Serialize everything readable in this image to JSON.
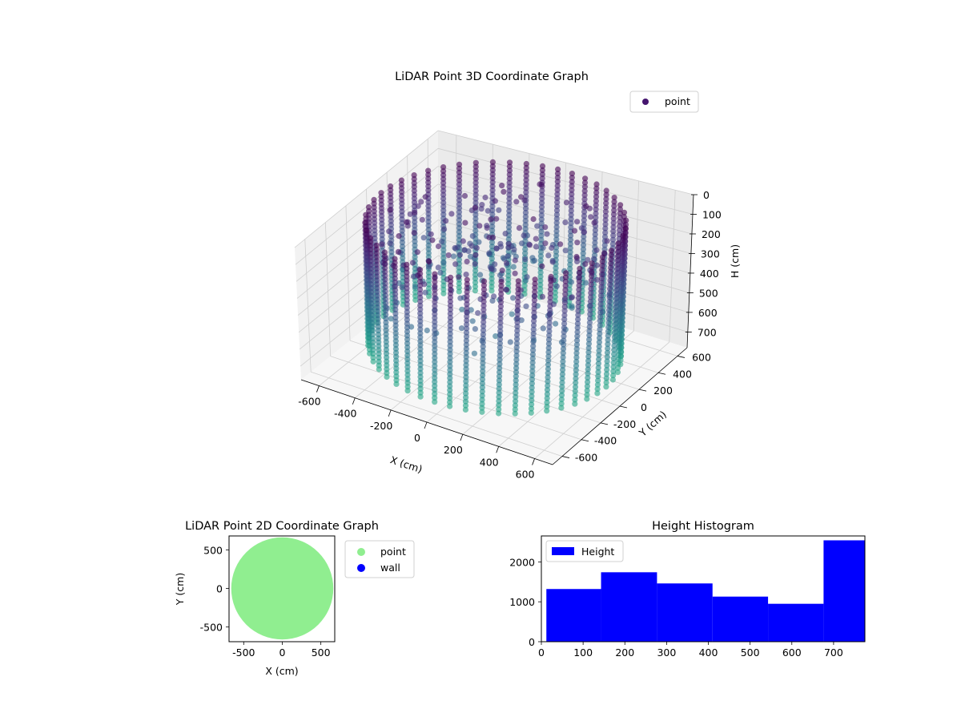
{
  "chart_data": [
    {
      "type": "scatter",
      "projection": "3d",
      "title": "LiDAR Point 3D Coordinate Graph",
      "xlabel": "X (cm)",
      "ylabel": "Y (cm)",
      "zlabel": "H (cm)",
      "xlim": [
        -700,
        700
      ],
      "ylim": [
        -700,
        700
      ],
      "zlim": [
        0,
        780
      ],
      "z_axis_inverted": true,
      "xticks": [
        "-600",
        "-400",
        "-200",
        "0",
        "200",
        "400",
        "600"
      ],
      "yticks": [
        "-600",
        "-400",
        "-200",
        "0",
        "200",
        "400",
        "600"
      ],
      "zticks": [
        "0",
        "100",
        "200",
        "300",
        "400",
        "500",
        "600",
        "700"
      ],
      "colormap": "viridis",
      "grid": true,
      "legend": {
        "placement": "top-right",
        "entries": [
          "point"
        ]
      },
      "series": [
        {
          "name": "point",
          "color": "#3b1c6c",
          "description_values": {
            "wall_radius": 620,
            "height_range": [
              0,
              780
            ],
            "scan_columns": 48
          }
        }
      ]
    },
    {
      "type": "scatter",
      "title": "LiDAR Point 2D Coordinate Graph",
      "xlabel": "X (cm)",
      "ylabel": "Y (cm)",
      "xlim": [
        -690,
        680
      ],
      "ylim": [
        -690,
        680
      ],
      "xticks": [
        "-500",
        "0",
        "500"
      ],
      "yticks": [
        "-500",
        "0",
        "500"
      ],
      "legend": {
        "placement": "outside-right",
        "entries": [
          "point",
          "wall"
        ]
      },
      "series": [
        {
          "name": "point",
          "color": "#90ee90",
          "shape": "disc",
          "radius": 620
        },
        {
          "name": "wall",
          "color": "#0000ff"
        }
      ]
    },
    {
      "type": "bar",
      "subtype": "histogram",
      "title": "Height Histogram",
      "xlim": [
        0,
        775
      ],
      "ylim": [
        0,
        2650
      ],
      "xticks": [
        "0",
        "100",
        "200",
        "300",
        "400",
        "500",
        "600",
        "700"
      ],
      "yticks": [
        "0",
        "1000",
        "2000"
      ],
      "legend": {
        "placement": "top-left",
        "entries": [
          "Height"
        ]
      },
      "series": [
        {
          "name": "Height",
          "color": "#0000ff",
          "bin_edges": [
            12,
            143,
            277,
            410,
            543,
            676,
            775
          ],
          "values": [
            1320,
            1740,
            1460,
            1130,
            950,
            2540
          ]
        }
      ]
    }
  ]
}
